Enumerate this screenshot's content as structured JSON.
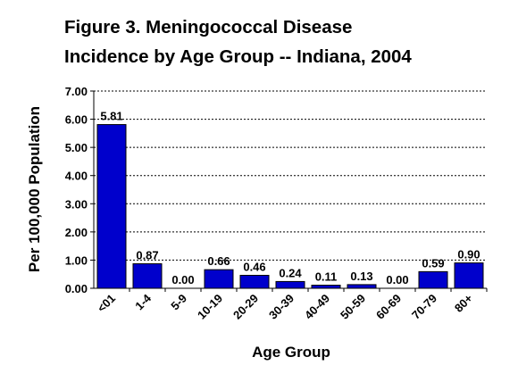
{
  "chart_data": {
    "type": "bar",
    "title_lines": [
      "Figure 3.  Meningococcal Disease",
      "Incidence by Age Group -- Indiana, 2004"
    ],
    "xlabel": "Age Group",
    "ylabel": "Per 100,000 Population",
    "categories": [
      "<01",
      "1-4",
      "5-9",
      "10-19",
      "20-29",
      "30-39",
      "40-49",
      "50-59",
      "60-69",
      "70-79",
      "80+"
    ],
    "values": [
      5.81,
      0.87,
      0.0,
      0.66,
      0.46,
      0.24,
      0.11,
      0.13,
      0.0,
      0.59,
      0.9
    ],
    "value_labels": [
      "5.81",
      "0.87",
      "0.00",
      "0.66",
      "0.46",
      "0.24",
      "0.11",
      "0.13",
      "0.00",
      "0.59",
      "0.90"
    ],
    "y_ticks": [
      0,
      1,
      2,
      3,
      4,
      5,
      6,
      7
    ],
    "y_tick_labels": [
      "0.00",
      "1.00",
      "2.00",
      "3.00",
      "4.00",
      "5.00",
      "6.00",
      "7.00"
    ],
    "ylim": [
      0,
      7
    ],
    "grid": "horizontal dashed",
    "legend": "none",
    "colors": {
      "bar_fill": "#0000cc",
      "bar_stroke": "#000000",
      "axis": "#000000",
      "grid": "#000000"
    }
  }
}
